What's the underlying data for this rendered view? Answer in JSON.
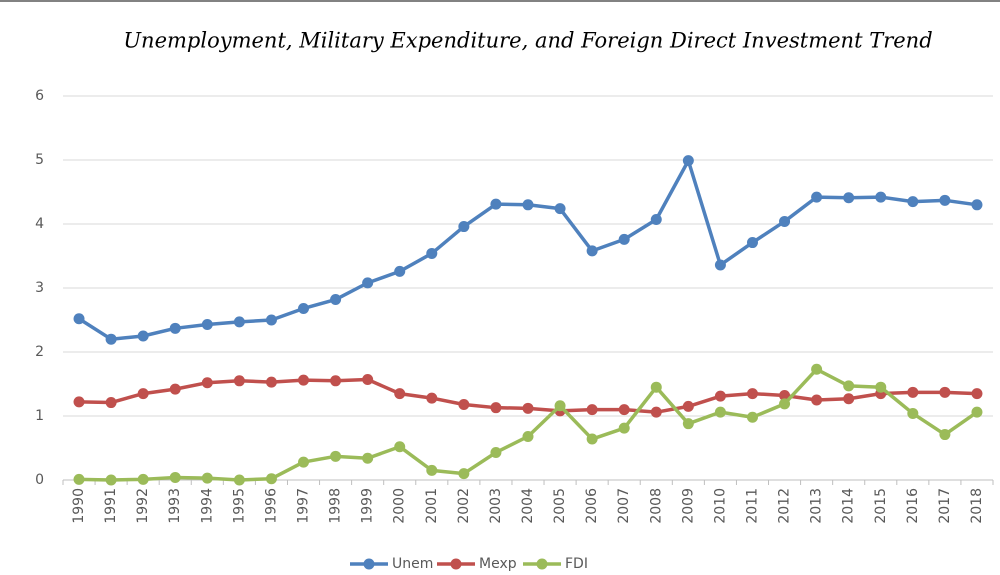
{
  "chart_data": {
    "type": "line",
    "title": "Unemployment, Military Expenditure, and Foreign Direct Investment Trend",
    "categories": [
      "1990",
      "1991",
      "1992",
      "1993",
      "1994",
      "1995",
      "1996",
      "1997",
      "1998",
      "1999",
      "2000",
      "2001",
      "2002",
      "2003",
      "2004",
      "2005",
      "2006",
      "2007",
      "2008",
      "2009",
      "2010",
      "2011",
      "2012",
      "2013",
      "2014",
      "2015",
      "2016",
      "2017",
      "2018"
    ],
    "series": [
      {
        "name": "Unem",
        "color": "#4f81bd",
        "values": [
          2.52,
          2.2,
          2.25,
          2.37,
          2.43,
          2.47,
          2.5,
          2.68,
          2.82,
          3.08,
          3.26,
          3.54,
          3.96,
          4.31,
          4.3,
          4.24,
          3.58,
          3.76,
          4.07,
          4.99,
          3.36,
          3.71,
          4.04,
          4.42,
          4.41,
          4.42,
          4.35,
          4.37,
          4.3
        ]
      },
      {
        "name": "Mexp",
        "color": "#c0504d",
        "values": [
          1.22,
          1.21,
          1.35,
          1.42,
          1.52,
          1.55,
          1.53,
          1.56,
          1.55,
          1.57,
          1.35,
          1.28,
          1.18,
          1.13,
          1.12,
          1.08,
          1.1,
          1.1,
          1.06,
          1.15,
          1.31,
          1.35,
          1.32,
          1.25,
          1.27,
          1.35,
          1.37,
          1.37,
          1.35
        ]
      },
      {
        "name": "FDI",
        "color": "#9bbb59",
        "values": [
          0.01,
          0.0,
          0.01,
          0.04,
          0.03,
          0.0,
          0.02,
          0.28,
          0.37,
          0.34,
          0.52,
          0.15,
          0.1,
          0.43,
          0.68,
          1.16,
          0.64,
          0.81,
          1.45,
          0.88,
          1.06,
          0.98,
          1.19,
          1.73,
          1.47,
          1.45,
          1.04,
          0.71,
          1.06
        ]
      }
    ],
    "ylim": [
      0,
      6
    ],
    "yticks": [
      0,
      1,
      2,
      3,
      4,
      5,
      6
    ],
    "grid": true,
    "legend": "bottom"
  }
}
